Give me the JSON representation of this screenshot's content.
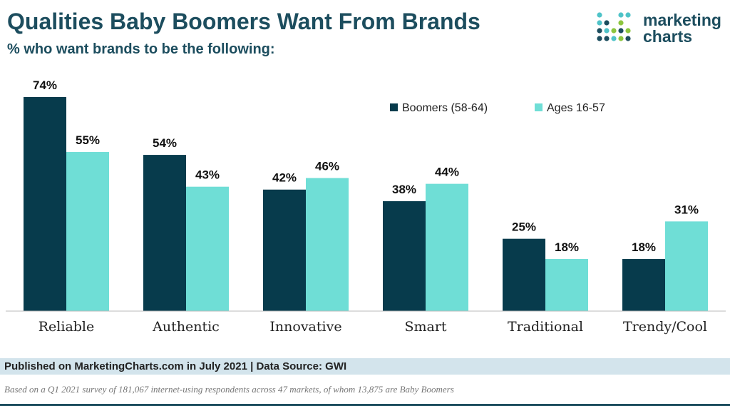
{
  "header": {
    "title": "Qualities Baby Boomers Want From Brands",
    "subtitle": "% who want brands to be the following:"
  },
  "logo": {
    "line1": "marketing",
    "line2": "charts",
    "colors": {
      "navy": "#1c4d5e",
      "teal": "#4fc3c8",
      "green": "#8dc63f"
    }
  },
  "chart_data": {
    "type": "bar",
    "title": "Qualities Baby Boomers Want From Brands",
    "subtitle": "% who want brands to be the following:",
    "categories": [
      "Reliable",
      "Authentic",
      "Innovative",
      "Smart",
      "Traditional",
      "Trendy/Cool"
    ],
    "series": [
      {
        "name": "Boomers (58-64)",
        "color": "#073b4c",
        "values": [
          74,
          54,
          42,
          38,
          25,
          18
        ]
      },
      {
        "name": "Ages 16-57",
        "color": "#6fded6",
        "values": [
          55,
          43,
          46,
          44,
          18,
          31
        ]
      }
    ],
    "value_suffix": "%",
    "ylim": [
      0,
      74
    ],
    "xlabel": "",
    "ylabel": "",
    "grid": false,
    "legend": "top-right"
  },
  "footer": {
    "published": "Published on MarketingCharts.com in July 2021 | Data Source: GWI",
    "note": "Based on a Q1 2021 survey of 181,067 internet-using respondents across 47 markets, of whom 13,875 are Baby Boomers"
  }
}
